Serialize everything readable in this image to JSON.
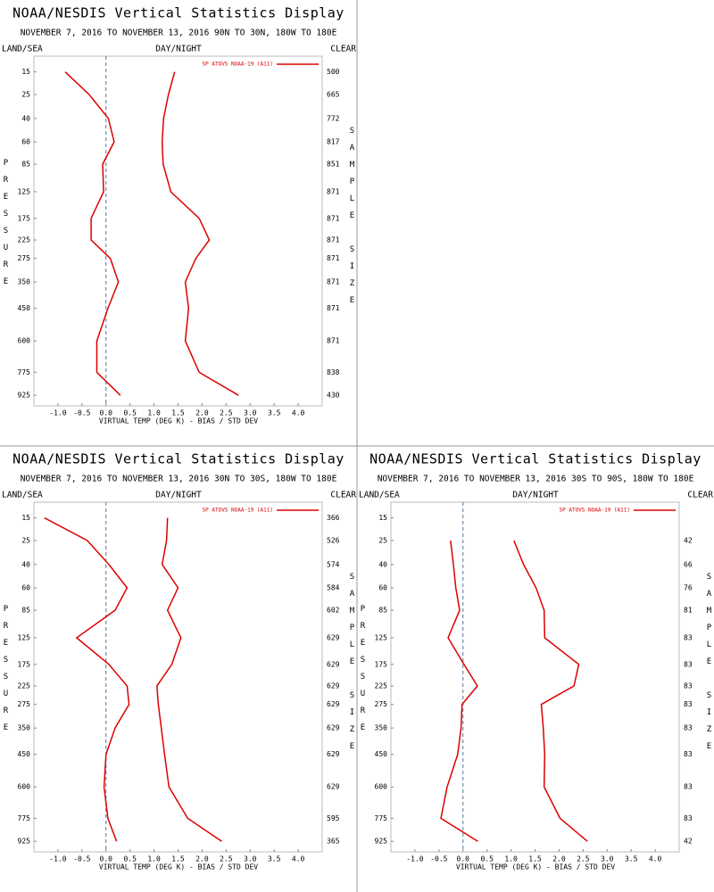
{
  "chart_data": [
    {
      "type": "line",
      "title": "NOAA/NESDIS Vertical Statistics Display",
      "subtitle": "NOVEMBER 7, 2016 TO NOVEMBER 13, 2016 90N TO 30N, 180W TO 180E",
      "left_header": "LAND/SEA",
      "center_header": "DAY/NIGHT",
      "right_header": "CLEAR",
      "ylabel": "PRESSURE",
      "y2label": "SAMPLE SIZE",
      "xlabel": "VIRTUAL TEMP (DEG K) - BIAS / STD DEV",
      "yscale": "kappa",
      "ylim": [
        1000,
        10
      ],
      "yticks": [
        15,
        25,
        40,
        60,
        85,
        125,
        175,
        225,
        275,
        350,
        450,
        600,
        775,
        925
      ],
      "xlim": [
        -1.5,
        4.5
      ],
      "xticks": [
        {
          "value": -1,
          "label": "-1.0"
        },
        -0.5,
        {
          "value": 0,
          "label": "0.0"
        },
        0.5,
        {
          "value": 1,
          "label": "1.0"
        },
        1.5,
        {
          "value": 2,
          "label": "2.0"
        },
        2.5,
        {
          "value": 3,
          "label": "3.0"
        },
        3.5,
        {
          "value": 4,
          "label": "4.0"
        }
      ],
      "sample_sizes": [
        500,
        665,
        772,
        817,
        851,
        871,
        871,
        871,
        871,
        871,
        871,
        871,
        838,
        430
      ],
      "zero_line": true,
      "series": [
        {
          "name": "SP ATOVS NOAA-19 (A11)",
          "color": "#dd0000",
          "bias": [
            -0.85,
            -0.35,
            0.05,
            0.17,
            -0.07,
            -0.05,
            -0.31,
            -0.31,
            0.09,
            0.26,
            0.04,
            -0.19,
            -0.19,
            0.3
          ],
          "std_dev": [
            1.43,
            1.3,
            1.2,
            1.17,
            1.19,
            1.35,
            1.94,
            2.15,
            1.87,
            1.65,
            1.72,
            1.65,
            1.94,
            2.76
          ]
        }
      ]
    },
    {
      "type": "line",
      "title": "NOAA/NESDIS Vertical Statistics Display",
      "subtitle": "NOVEMBER 7, 2016 TO NOVEMBER 13, 2016 30N TO 30S, 180W TO 180E",
      "left_header": "LAND/SEA",
      "center_header": "DAY/NIGHT",
      "right_header": "CLEAR",
      "ylabel": "PRESSURE",
      "y2label": "SAMPLE SIZE",
      "xlabel": "VIRTUAL TEMP (DEG K) - BIAS / STD DEV",
      "yscale": "kappa",
      "ylim": [
        1000,
        10
      ],
      "yticks": [
        15,
        25,
        40,
        60,
        85,
        125,
        175,
        225,
        275,
        350,
        450,
        600,
        775,
        925
      ],
      "xlim": [
        -1.5,
        4.5
      ],
      "xticks": [
        {
          "value": -1,
          "label": "-1.0"
        },
        -0.5,
        {
          "value": 0,
          "label": "0.0"
        },
        0.5,
        {
          "value": 1,
          "label": "1.0"
        },
        1.5,
        {
          "value": 2,
          "label": "2.0"
        },
        2.5,
        {
          "value": 3,
          "label": "3.0"
        },
        3.5,
        {
          "value": 4,
          "label": "4.0"
        }
      ],
      "sample_sizes": [
        366,
        526,
        574,
        584,
        602,
        629,
        629,
        629,
        629,
        629,
        629,
        629,
        595,
        365
      ],
      "zero_line": true,
      "series": [
        {
          "name": "SP ATOVS NOAA-19 (A11)",
          "color": "#dd0000",
          "bias": [
            -1.28,
            -0.39,
            0.06,
            0.44,
            0.19,
            -0.61,
            0.06,
            0.44,
            0.48,
            0.19,
            0.0,
            -0.04,
            0.04,
            0.22
          ],
          "std_dev": [
            1.28,
            1.26,
            1.17,
            1.5,
            1.28,
            1.56,
            1.37,
            1.06,
            1.09,
            1.15,
            1.22,
            1.31,
            1.7,
            2.41
          ]
        }
      ]
    },
    {
      "type": "line",
      "title": "NOAA/NESDIS Vertical Statistics Display",
      "subtitle": "NOVEMBER 7, 2016 TO NOVEMBER 13, 2016 30S TO 90S, 180W TO 180E",
      "left_header": "LAND/SEA",
      "center_header": "DAY/NIGHT",
      "right_header": "CLEAR",
      "ylabel": "PRESSURE",
      "y2label": "SAMPLE SIZE",
      "xlabel": "VIRTUAL TEMP (DEG K) - BIAS / STD DEV",
      "yscale": "kappa",
      "ylim": [
        1000,
        10
      ],
      "yticks": [
        15,
        25,
        40,
        60,
        85,
        125,
        175,
        225,
        275,
        350,
        450,
        600,
        775,
        925
      ],
      "xlim": [
        -1.5,
        4.5
      ],
      "xticks": [
        {
          "value": -1,
          "label": "-1.0"
        },
        -0.5,
        {
          "value": 0,
          "label": "0.0"
        },
        0.5,
        {
          "value": 1,
          "label": "1.0"
        },
        1.5,
        {
          "value": 2,
          "label": "2.0"
        },
        2.5,
        {
          "value": 3,
          "label": "3.0"
        },
        3.5,
        {
          "value": 4,
          "label": "4.0"
        }
      ],
      "sample_sizes": [
        null,
        42,
        66,
        76,
        81,
        83,
        83,
        83,
        83,
        83,
        83,
        83,
        83,
        42
      ],
      "zero_line": true,
      "series": [
        {
          "name": "SP ATOVS NOAA-19 (A11)",
          "color": "#dd0000",
          "bias": [
            null,
            -0.26,
            -0.2,
            -0.15,
            -0.07,
            -0.31,
            0.02,
            0.3,
            -0.02,
            -0.04,
            -0.11,
            -0.33,
            -0.46,
            0.31
          ],
          "std_dev": [
            null,
            1.06,
            1.26,
            1.52,
            1.69,
            1.7,
            2.41,
            2.31,
            1.63,
            1.67,
            1.7,
            1.69,
            2.02,
            2.59
          ]
        }
      ]
    }
  ]
}
